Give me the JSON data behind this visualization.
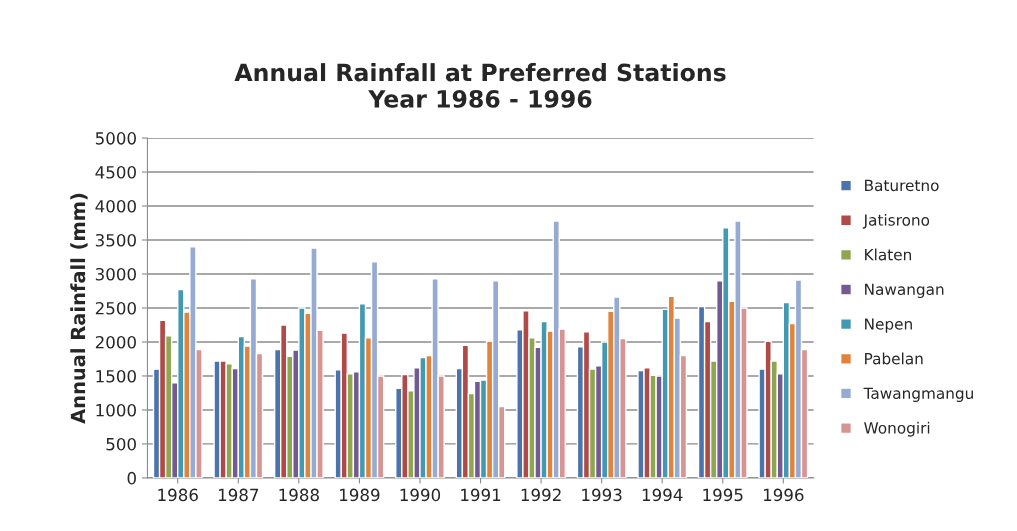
{
  "chart_data": {
    "type": "bar",
    "title": "Annual Rainfall at Preferred Stations\nYear 1986 - 1996",
    "ylabel": "Annual Rainfall (mm)",
    "categories": [
      "1986",
      "1987",
      "1988",
      "1989",
      "1990",
      "1991",
      "1992",
      "1993",
      "1994",
      "1995",
      "1996"
    ],
    "series": [
      {
        "name": "Baturetno",
        "color": "#4a74aa",
        "values": [
          1600,
          1720,
          1890,
          1590,
          1320,
          1610,
          2180,
          1930,
          1580,
          2520,
          1600
        ]
      },
      {
        "name": "Jatisrono",
        "color": "#b04a48",
        "values": [
          2320,
          1720,
          2250,
          2130,
          1520,
          1950,
          2460,
          2150,
          1620,
          2300,
          2010
        ]
      },
      {
        "name": "Klaten",
        "color": "#8ea64f",
        "values": [
          2090,
          1680,
          1790,
          1530,
          1280,
          1240,
          2060,
          1600,
          1510,
          1720,
          1720
        ]
      },
      {
        "name": "Nawangan",
        "color": "#745a92",
        "values": [
          1400,
          1610,
          1880,
          1560,
          1620,
          1420,
          1920,
          1650,
          1500,
          2900,
          1530
        ]
      },
      {
        "name": "Nepen",
        "color": "#4399b2",
        "values": [
          2770,
          2080,
          2500,
          2560,
          1770,
          1440,
          2300,
          2000,
          2480,
          3680,
          2580
        ]
      },
      {
        "name": "Pabelan",
        "color": "#e0843d",
        "values": [
          2440,
          1940,
          2420,
          2060,
          1800,
          2010,
          2160,
          2450,
          2670,
          2600,
          2270
        ]
      },
      {
        "name": "Tawangmangu",
        "color": "#95abd4",
        "values": [
          3400,
          2930,
          3380,
          3180,
          2930,
          2900,
          3780,
          2660,
          2350,
          3780,
          2910
        ]
      },
      {
        "name": "Wonogiri",
        "color": "#d69593",
        "values": [
          1890,
          1830,
          2170,
          1500,
          1500,
          1050,
          2190,
          2050,
          1800,
          2500,
          1890
        ]
      }
    ],
    "ylim": [
      0,
      5000
    ],
    "yticks": [
      0,
      500,
      1000,
      1500,
      2000,
      2500,
      3000,
      3500,
      4000,
      4500,
      5000
    ],
    "grid": "y",
    "legend": "right"
  }
}
